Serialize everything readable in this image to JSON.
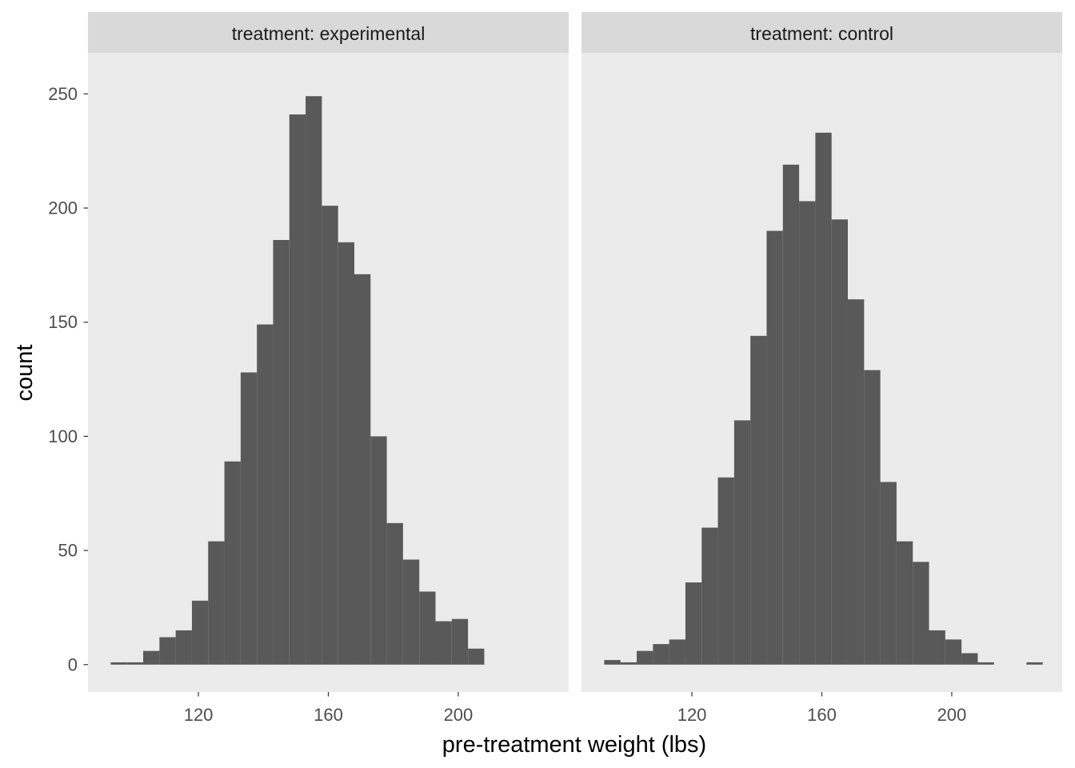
{
  "chart_data": {
    "type": "bar",
    "subtype": "faceted-histogram",
    "xlabel": "pre-treatment weight (lbs)",
    "ylabel": "count",
    "xlim": [
      86,
      234
    ],
    "ylim": [
      -12,
      268
    ],
    "x_ticks": [
      120,
      160,
      200
    ],
    "y_ticks": [
      0,
      50,
      100,
      150,
      200,
      250
    ],
    "bin_width": 5,
    "bar_color": "#595959",
    "panel_background": "#ebebeb",
    "strip_background": "#d9d9d9",
    "gridlines": false,
    "panels": [
      {
        "strip_label": "treatment: experimental",
        "bins": [
          {
            "x0": 93,
            "x1": 98,
            "count": 1
          },
          {
            "x0": 98,
            "x1": 103,
            "count": 1
          },
          {
            "x0": 103,
            "x1": 108,
            "count": 6
          },
          {
            "x0": 108,
            "x1": 113,
            "count": 12
          },
          {
            "x0": 113,
            "x1": 118,
            "count": 15
          },
          {
            "x0": 118,
            "x1": 123,
            "count": 28
          },
          {
            "x0": 123,
            "x1": 128,
            "count": 54
          },
          {
            "x0": 128,
            "x1": 133,
            "count": 89
          },
          {
            "x0": 133,
            "x1": 138,
            "count": 128
          },
          {
            "x0": 138,
            "x1": 143,
            "count": 149
          },
          {
            "x0": 143,
            "x1": 148,
            "count": 186
          },
          {
            "x0": 148,
            "x1": 153,
            "count": 241
          },
          {
            "x0": 153,
            "x1": 158,
            "count": 249
          },
          {
            "x0": 158,
            "x1": 163,
            "count": 201
          },
          {
            "x0": 163,
            "x1": 168,
            "count": 185
          },
          {
            "x0": 168,
            "x1": 173,
            "count": 171
          },
          {
            "x0": 173,
            "x1": 178,
            "count": 100
          },
          {
            "x0": 178,
            "x1": 183,
            "count": 62
          },
          {
            "x0": 183,
            "x1": 188,
            "count": 46
          },
          {
            "x0": 188,
            "x1": 193,
            "count": 32
          },
          {
            "x0": 193,
            "x1": 198,
            "count": 19
          },
          {
            "x0": 198,
            "x1": 203,
            "count": 20
          },
          {
            "x0": 203,
            "x1": 208,
            "count": 7
          }
        ]
      },
      {
        "strip_label": "treatment: control",
        "bins": [
          {
            "x0": 93,
            "x1": 98,
            "count": 2
          },
          {
            "x0": 98,
            "x1": 103,
            "count": 1
          },
          {
            "x0": 103,
            "x1": 108,
            "count": 6
          },
          {
            "x0": 108,
            "x1": 113,
            "count": 9
          },
          {
            "x0": 113,
            "x1": 118,
            "count": 11
          },
          {
            "x0": 118,
            "x1": 123,
            "count": 36
          },
          {
            "x0": 123,
            "x1": 128,
            "count": 60
          },
          {
            "x0": 128,
            "x1": 133,
            "count": 82
          },
          {
            "x0": 133,
            "x1": 138,
            "count": 107
          },
          {
            "x0": 138,
            "x1": 143,
            "count": 144
          },
          {
            "x0": 143,
            "x1": 148,
            "count": 190
          },
          {
            "x0": 148,
            "x1": 153,
            "count": 219
          },
          {
            "x0": 153,
            "x1": 158,
            "count": 203
          },
          {
            "x0": 158,
            "x1": 163,
            "count": 233
          },
          {
            "x0": 163,
            "x1": 168,
            "count": 195
          },
          {
            "x0": 168,
            "x1": 173,
            "count": 160
          },
          {
            "x0": 173,
            "x1": 178,
            "count": 129
          },
          {
            "x0": 178,
            "x1": 183,
            "count": 80
          },
          {
            "x0": 183,
            "x1": 188,
            "count": 54
          },
          {
            "x0": 188,
            "x1": 193,
            "count": 45
          },
          {
            "x0": 193,
            "x1": 198,
            "count": 15
          },
          {
            "x0": 198,
            "x1": 203,
            "count": 11
          },
          {
            "x0": 203,
            "x1": 208,
            "count": 5
          },
          {
            "x0": 208,
            "x1": 213,
            "count": 1
          },
          {
            "x0": 213,
            "x1": 218,
            "count": 0
          },
          {
            "x0": 218,
            "x1": 223,
            "count": 0
          },
          {
            "x0": 223,
            "x1": 228,
            "count": 1
          }
        ]
      }
    ]
  }
}
